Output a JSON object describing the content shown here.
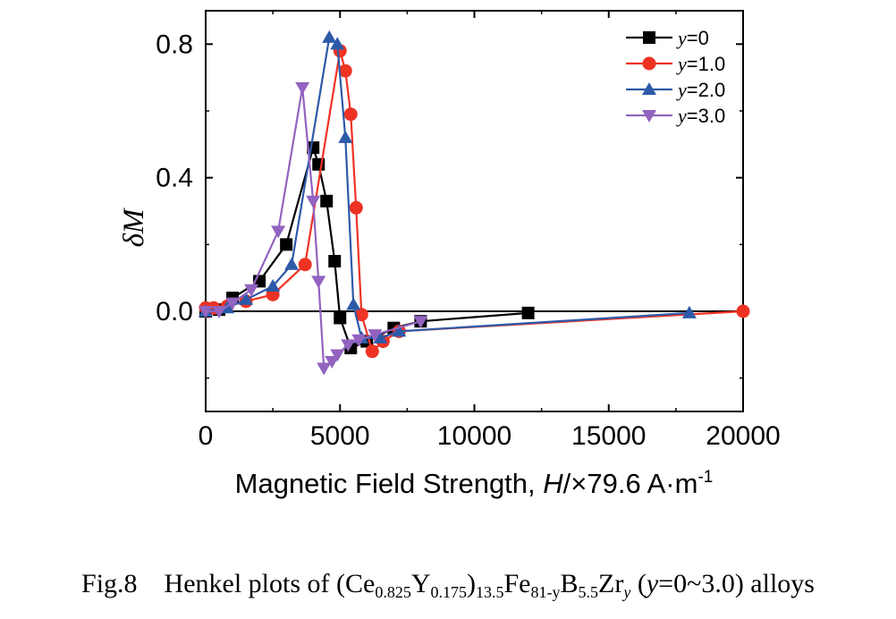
{
  "chart_data": {
    "type": "scatter",
    "xlabel": "Magnetic Field Strength, ",
    "xlabel_var": "H",
    "xlabel_unit": "/×79.6 A·m",
    "xlabel_exp": "-1",
    "ylabel": "δM",
    "xlim": [
      0,
      20000
    ],
    "ylim": [
      -0.3,
      0.9
    ],
    "xticks": [
      0,
      5000,
      10000,
      15000,
      20000
    ],
    "xtick_labels": [
      "0",
      "5000",
      "10000",
      "15000",
      "20000"
    ],
    "yticks": [
      0.0,
      0.4,
      0.8
    ],
    "ytick_labels": [
      "0.0",
      "0.4",
      "0.8"
    ],
    "zero_line": true,
    "grid": false,
    "legend_position": "top-right",
    "series": [
      {
        "name": "y=0",
        "var": "y",
        "val": "=0",
        "color": "#000000",
        "marker": "square",
        "x": [
          0,
          500,
          1000,
          2000,
          3000,
          4000,
          4200,
          4500,
          4800,
          5000,
          5400,
          6000,
          7000,
          8000,
          12000
        ],
        "y": [
          0.0,
          0.005,
          0.04,
          0.09,
          0.2,
          0.49,
          0.44,
          0.33,
          0.15,
          -0.02,
          -0.11,
          -0.09,
          -0.05,
          -0.03,
          -0.005
        ]
      },
      {
        "name": "y=1.0",
        "var": "y",
        "val": "=1.0",
        "color": "#ee3324",
        "marker": "circle",
        "x": [
          0,
          300,
          800,
          1500,
          2500,
          3700,
          5000,
          5200,
          5400,
          5600,
          5800,
          6200,
          6600,
          7200,
          20000
        ],
        "y": [
          0.01,
          0.01,
          0.015,
          0.03,
          0.05,
          0.14,
          0.78,
          0.72,
          0.59,
          0.31,
          -0.01,
          -0.12,
          -0.09,
          -0.06,
          0.0
        ]
      },
      {
        "name": "y=2.0",
        "var": "y",
        "val": "=2.0",
        "color": "#2d5aa8",
        "marker": "triangle-up",
        "x": [
          0,
          800,
          1500,
          2500,
          3200,
          4600,
          4900,
          5200,
          5500,
          5800,
          6500,
          7200,
          18000
        ],
        "y": [
          0.0,
          0.01,
          0.035,
          0.075,
          0.14,
          0.82,
          0.8,
          0.52,
          0.02,
          -0.08,
          -0.08,
          -0.06,
          -0.005
        ]
      },
      {
        "name": "y=3.0",
        "var": "y",
        "val": "=3.0",
        "color": "#9263c0",
        "marker": "triangle-down",
        "x": [
          0,
          500,
          1000,
          1700,
          2700,
          3600,
          4000,
          4200,
          4400,
          4700,
          4900,
          5300,
          5700,
          6300,
          8000
        ],
        "y": [
          0.0,
          0.0,
          0.025,
          0.065,
          0.24,
          0.67,
          0.33,
          0.09,
          -0.17,
          -0.15,
          -0.13,
          -0.1,
          -0.085,
          -0.07,
          -0.03
        ]
      }
    ]
  },
  "caption": {
    "prefix": "Fig.8",
    "text1": "Henkel plots of (Ce",
    "sub1": "0.825",
    "text2": "Y",
    "sub2": "0.175",
    "text3": ")",
    "sub3": "13.5",
    "text4": "Fe",
    "sub4": "81-y",
    "text5": "B",
    "sub5": "5.5",
    "text6": "Zr",
    "sub6": "y",
    "text7": " (",
    "var": "y",
    "text8": "=0~3.0) alloys"
  }
}
